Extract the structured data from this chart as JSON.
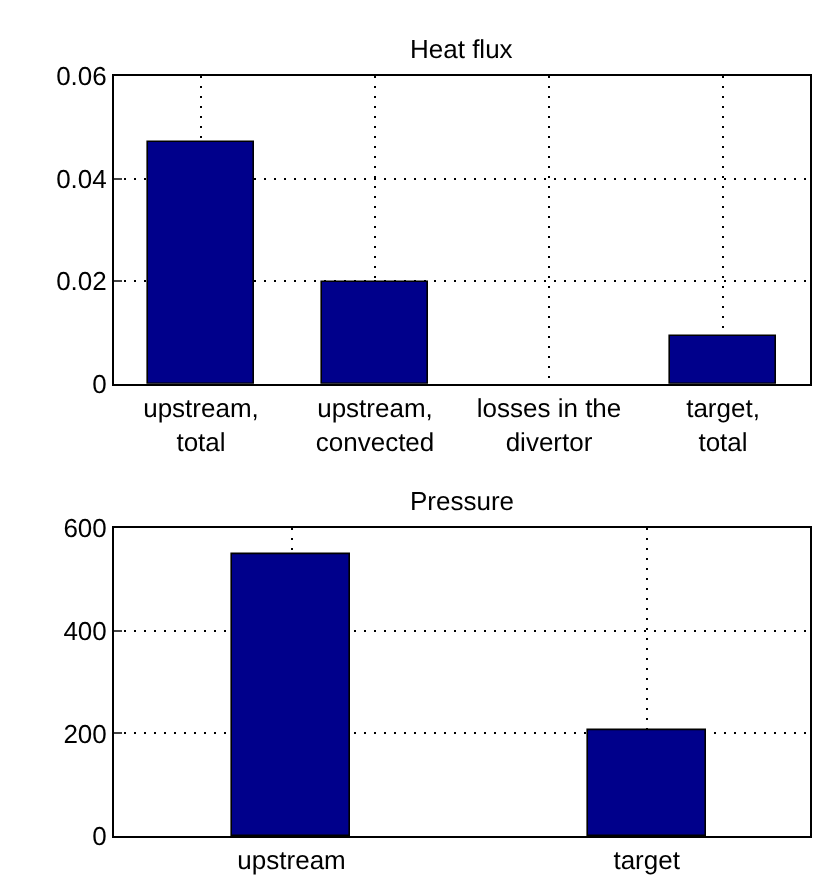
{
  "chart_data": [
    {
      "type": "bar",
      "title": "Heat flux",
      "categories": [
        "upstream,\ntotal",
        "upstream,\nconvected",
        "losses in the\ndivertor",
        "target,\ntotal"
      ],
      "values": [
        0.047,
        0.02,
        0,
        0.0092
      ],
      "color": "#00008b",
      "ylim": [
        0,
        0.06
      ],
      "yticks": [
        0,
        0.02,
        0.04,
        0.06
      ],
      "grid": true
    },
    {
      "type": "bar",
      "title": "Pressure",
      "categories": [
        "upstream",
        "target"
      ],
      "values": [
        550,
        205
      ],
      "color": "#00008b",
      "ylim": [
        0,
        600
      ],
      "yticks": [
        0,
        200,
        400,
        600
      ],
      "grid": true
    }
  ]
}
